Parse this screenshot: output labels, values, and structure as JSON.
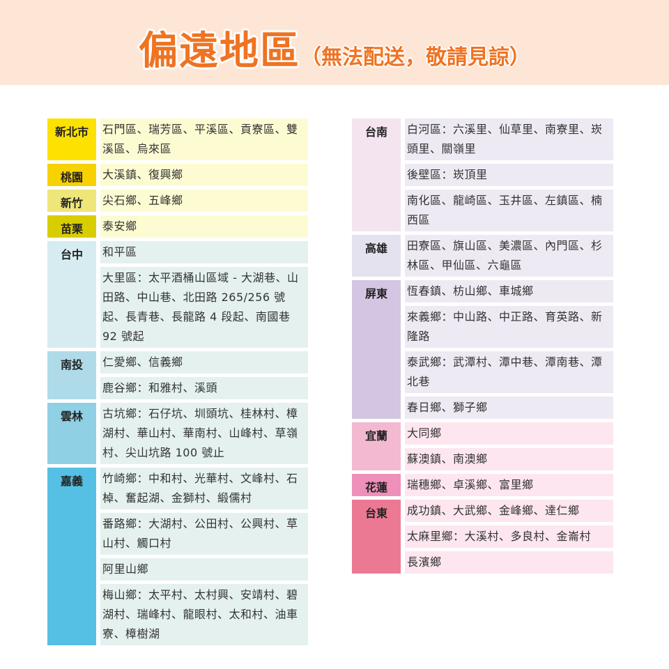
{
  "header": {
    "title": "偏遠地區",
    "subtitle": "（無法配送，敬請見諒）"
  },
  "left_groups": [
    {
      "name": "新北市",
      "label_color": "#fde100",
      "item_color": "#fdfbd2",
      "items": [
        "石門區、瑞芳區、平溪區、貢寮區、雙溪區、烏來區"
      ]
    },
    {
      "name": "桃園",
      "label_color": "#f7d100",
      "item_color": "#fdfbd2",
      "items": [
        "大溪鎮、復興鄉"
      ]
    },
    {
      "name": "新竹",
      "label_color": "#efe67a",
      "item_color": "#fdfbd2",
      "items": [
        "尖石鄉、五峰鄉"
      ]
    },
    {
      "name": "苗栗",
      "label_color": "#d8cd00",
      "item_color": "#fdfbd2",
      "items": [
        "泰安鄉"
      ]
    },
    {
      "name": "台中",
      "label_color": "#d6ecf1",
      "item_color": "#e4f1ef",
      "items": [
        "和平區",
        "大里區：太平酒桶山區域 - 大湖巷、山田路、中山巷、北田路 265/256 號起、長青巷、長龍路 4 段起、南國巷 92 號起"
      ]
    },
    {
      "name": "南投",
      "label_color": "#afdbe8",
      "item_color": "#e4f1ef",
      "items": [
        "仁愛鄉、信義鄉",
        "鹿谷鄉：和雅村、溪頭"
      ]
    },
    {
      "name": "雲林",
      "label_color": "#8fd0e4",
      "item_color": "#e4f1ef",
      "items": [
        "古坑鄉：石仔坑、圳頭坑、桂林村、樟湖村、華山村、華南村、山峰村、草嶺村、尖山坑路 100 號止"
      ]
    },
    {
      "name": "嘉義",
      "label_color": "#56c0e4",
      "item_color": "#e4f1ef",
      "items": [
        "竹崎鄉：中和村、光華村、文峰村、石棹、奮起湖、金獅村、緞儒村",
        "番路鄉：大湖村、公田村、公興村、草山村、觸口村",
        "阿里山鄉",
        "梅山鄉：太平村、太村興、安靖村、碧湖村、瑞峰村、龍眼村、太和村、油車寮、樟樹湖"
      ]
    }
  ],
  "right_groups": [
    {
      "name": "台南",
      "label_color": "#f4e4ef",
      "item_color": "#eeeaf3",
      "items": [
        "白河區：六溪里、仙草里、南寮里、崁頭里、關嶺里",
        "後壁區：崁頂里",
        "南化區、龍崎區、玉井區、左鎮區、楠西區"
      ]
    },
    {
      "name": "高雄",
      "label_color": "#e4e2ef",
      "item_color": "#eeeaf3",
      "items": [
        "田寮區、旗山區、美濃區、內門區、杉林區、甲仙區、六龜區"
      ]
    },
    {
      "name": "屏東",
      "label_color": "#d4c6e2",
      "item_color": "#eeeaf3",
      "items": [
        "恆春鎮、枋山鄉、車城鄉",
        "來義鄉：中山路、中正路、育英路、新隆路",
        "泰武鄉：武潭村、潭中巷、潭南巷、潭北巷",
        "春日鄉、獅子鄉"
      ]
    },
    {
      "name": "宜蘭",
      "label_color": "#f3b9d1",
      "item_color": "#fde6ef",
      "items": [
        "大同鄉",
        "蘇澳鎮、南澳鄉"
      ]
    },
    {
      "name": "花蓮",
      "label_color": "#ee90ba",
      "item_color": "#fde6ef",
      "items": [
        "瑞穗鄉、卓溪鄉、富里鄉"
      ]
    },
    {
      "name": "台東",
      "label_color": "#ec7994",
      "item_color": "#fde6ef",
      "items": [
        "成功鎮、大武鄉、金峰鄉、達仁鄉",
        "太麻里鄉：大溪村、多良村、金崙村",
        "長濱鄉"
      ]
    }
  ]
}
